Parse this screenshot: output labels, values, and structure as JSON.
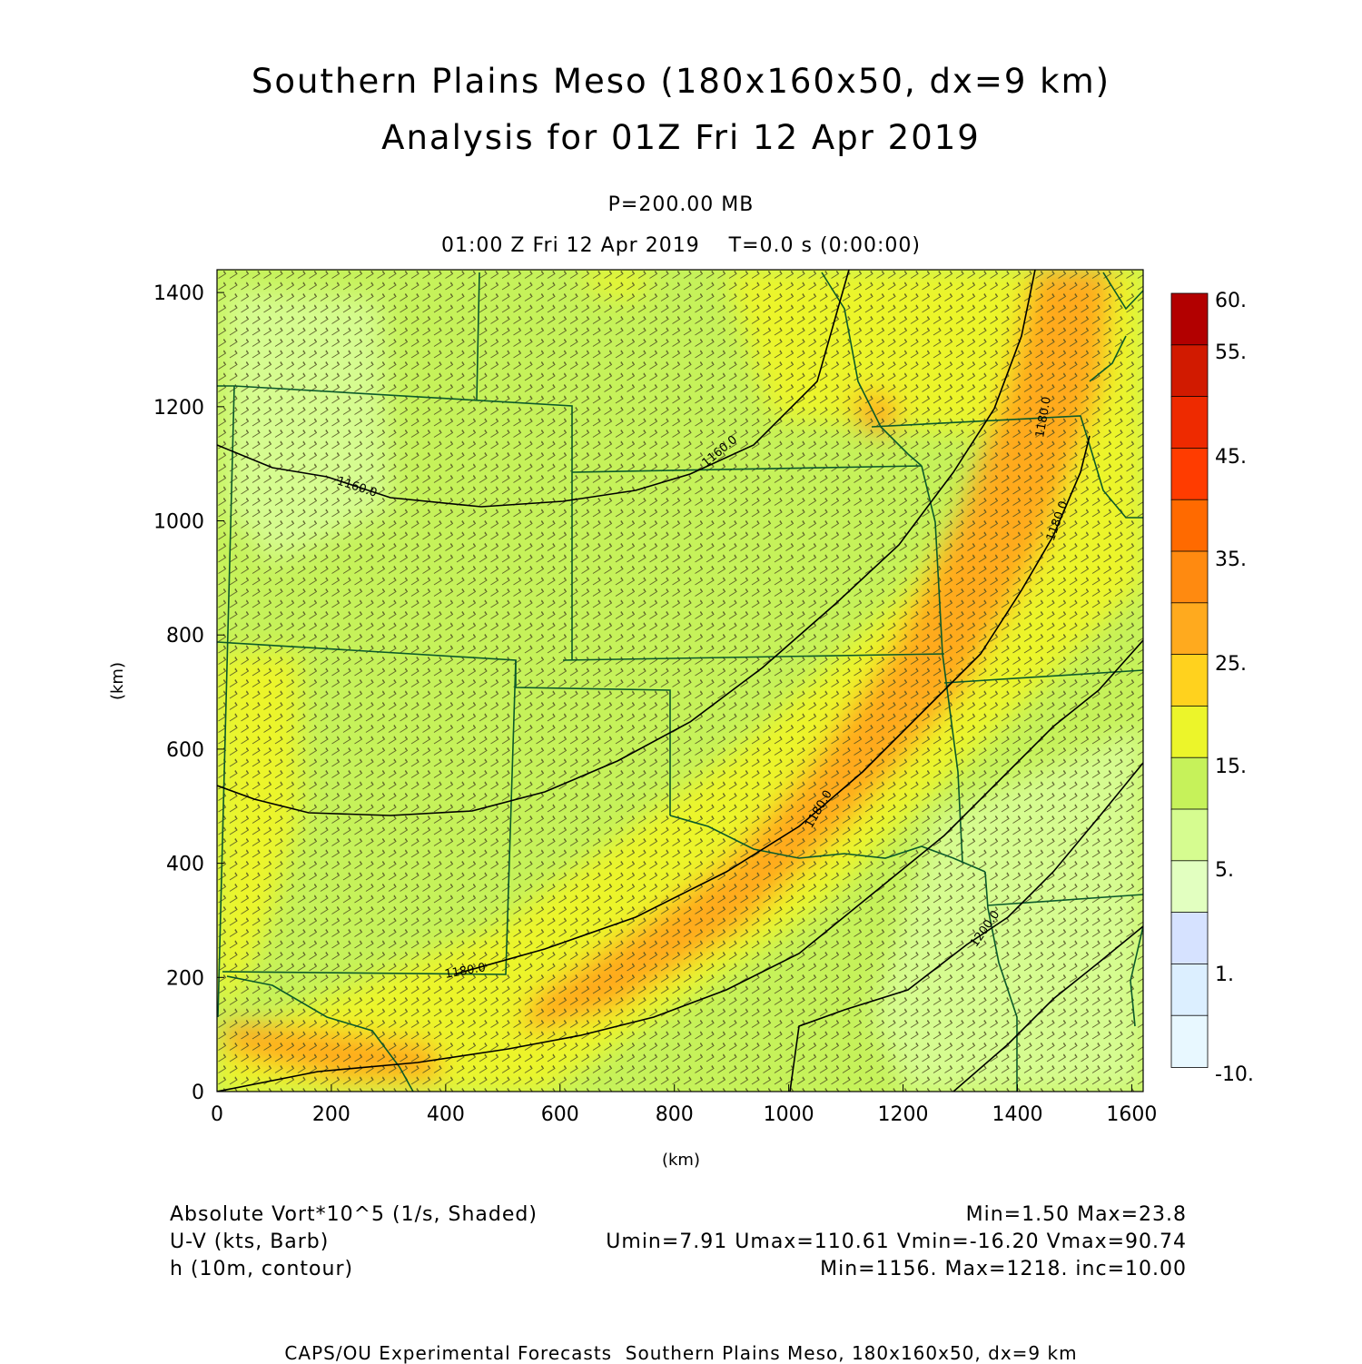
{
  "header": {
    "title": "Southern Plains Meso (180x160x50, dx=9 km)",
    "subtitle": "Analysis for 01Z Fri 12 Apr 2019",
    "level": "P=200.00 MB",
    "time": "01:00 Z Fri 12 Apr 2019    T=0.0 s (0:00:00)"
  },
  "axes": {
    "xlabel": "(km)",
    "ylabel": "(km)",
    "xlim": [
      0,
      1620
    ],
    "ylim": [
      0,
      1440
    ],
    "x_ticks": [
      "0",
      "200",
      "400",
      "600",
      "800",
      "1000",
      "1200",
      "1400",
      "1600"
    ],
    "y_ticks": [
      "0",
      "200",
      "400",
      "600",
      "800",
      "1000",
      "1200",
      "1400"
    ]
  },
  "contour_labels": [
    "1160.0",
    "1160.0",
    "1180.0",
    "1180.0",
    "1180.0",
    "1200.0",
    "1180.0"
  ],
  "colorbar": {
    "labels": [
      "60.",
      "55.",
      "45.",
      "35.",
      "25.",
      "15.",
      "5.",
      "1.",
      "-10."
    ],
    "colors": [
      "#b20000",
      "#d11a00",
      "#ee2a00",
      "#ff3c00",
      "#ff6a00",
      "#ff8a10",
      "#ffaa1e",
      "#ffd21e",
      "#ecf52a",
      "#c6f25a",
      "#d6fc90",
      "#e2ffc0",
      "#d6e2ff",
      "#dcefff",
      "#e8f8ff"
    ]
  },
  "legend": {
    "line1_left": "Absolute Vort*10^5 (1/s, Shaded)",
    "line1_right": "Min=1.50 Max=23.8",
    "line2_left": "U-V (kts, Barb)",
    "line2_right": "Umin=7.91 Umax=110.61 Vmin=-16.20 Vmax=90.74",
    "line3_left": "h (10m, contour)",
    "line3_right": "Min=1156. Max=1218. inc=10.00"
  },
  "footer": "CAPS/OU Experimental Forecasts  Southern Plains Meso, 180x160x50, dx=9 km",
  "colors": {
    "base_field": "#c6f25a",
    "band_yellow": "#ecf52a",
    "band_orange": "#ffaa1e",
    "light_green": "#d6fc90",
    "borders": "#0b5a2a",
    "contours": "#000000"
  }
}
